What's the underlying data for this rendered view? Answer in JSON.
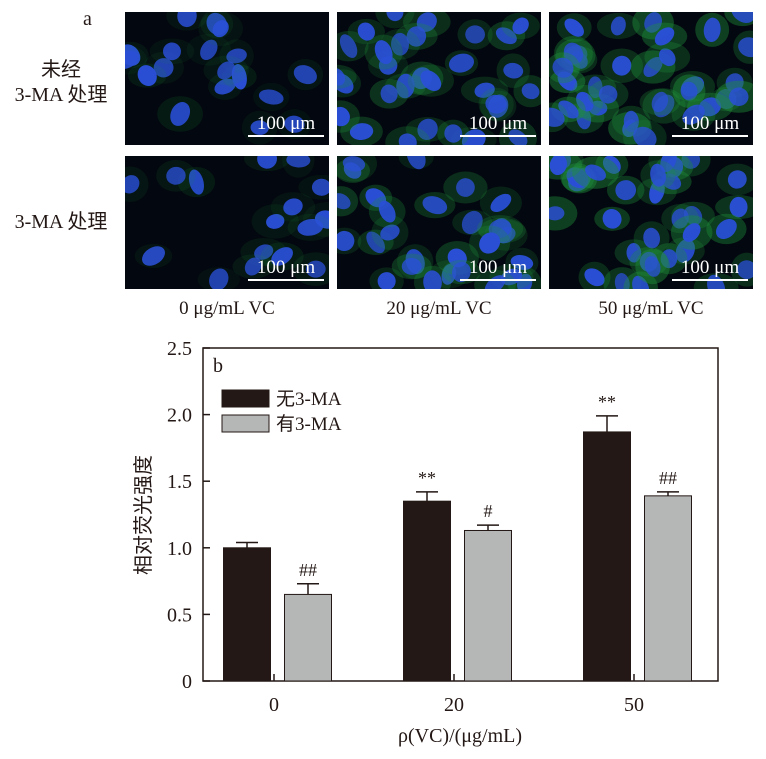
{
  "panel_a": {
    "letter": "a",
    "row_labels": [
      "未经\n3-MA 处理",
      "3-MA 处理"
    ],
    "col_labels": [
      "0 μg/mL VC",
      "20 μg/mL VC",
      "50 μg/mL VC"
    ],
    "scale_bar": "100 μm",
    "colors": {
      "nucleus": "#2a4fd6",
      "cytoplasm": "#1f8f3a",
      "background": "#03070f"
    }
  },
  "panel_b": {
    "letter": "b"
  },
  "chart_data": {
    "type": "bar",
    "title": "",
    "xlabel": "ρ(VC)/(μg/mL)",
    "ylabel": "相对荧光强度",
    "categories": [
      "0",
      "20",
      "50"
    ],
    "ylim": [
      0,
      2.5
    ],
    "yticks": [
      "0",
      "0.5",
      "1.0",
      "1.5",
      "2.0",
      "2.5"
    ],
    "legend_position": "top-left",
    "series": [
      {
        "name": "无3-MA",
        "color": "#231815",
        "values": [
          1.0,
          1.35,
          1.87
        ],
        "errors": [
          0.04,
          0.07,
          0.12
        ],
        "annotations": [
          "",
          "**",
          "**"
        ]
      },
      {
        "name": "有3-MA",
        "color": "#b5b6b6",
        "values": [
          0.65,
          1.13,
          1.39
        ],
        "errors": [
          0.08,
          0.04,
          0.03
        ],
        "annotations": [
          "##",
          "#",
          "##"
        ]
      }
    ]
  }
}
